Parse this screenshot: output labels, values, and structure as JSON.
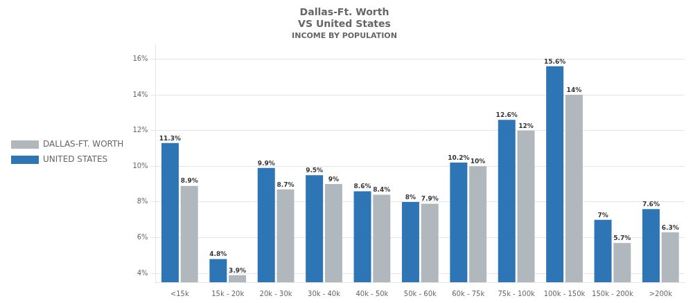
{
  "chart_data": {
    "type": "bar",
    "title": [
      "Dallas-Ft. Worth",
      "VS United States"
    ],
    "subtitle": "INCOME BY POPULATION",
    "categories": [
      "<15k",
      "15k - 20k",
      "20k - 30k",
      "30k - 40k",
      "40k - 50k",
      "50k - 60k",
      "60k - 75k",
      "75k - 100k",
      "100k - 150k",
      "150k - 200k",
      ">200k"
    ],
    "series": [
      {
        "name": "UNITED STATES",
        "color": "#2e75b6",
        "values": [
          0.113,
          0.048,
          0.099,
          0.095,
          0.086,
          0.08,
          0.102,
          0.126,
          0.156,
          0.07,
          0.076
        ],
        "value_labels": [
          "11.3%",
          "4.8%",
          "9.9%",
          "9.5%",
          "8.6%",
          "8%",
          "10.2%",
          "12.6%",
          "15.6%",
          "7%",
          "7.6%"
        ]
      },
      {
        "name": "DALLAS-FT. WORTH",
        "color": "#b0b8be",
        "values": [
          0.089,
          0.039,
          0.087,
          0.09,
          0.084,
          0.079,
          0.1,
          0.12,
          0.14,
          0.057,
          0.063
        ],
        "value_labels": [
          "8.9%",
          "3.9%",
          "8.7%",
          "9%",
          "8.4%",
          "7.9%",
          "10%",
          "12%",
          "14%",
          "5.7%",
          "6.3%"
        ]
      }
    ],
    "ylim": [
      0.035,
      0.168
    ],
    "yticks": [
      {
        "value": 0.04,
        "label": "4%"
      },
      {
        "value": 0.06,
        "label": "6%"
      },
      {
        "value": 0.08,
        "label": "8%"
      },
      {
        "value": 0.1,
        "label": "10%"
      },
      {
        "value": 0.12,
        "label": "12%"
      },
      {
        "value": 0.14,
        "label": "14%"
      },
      {
        "value": 0.16,
        "label": "16%"
      }
    ],
    "grid": true,
    "legend": "left",
    "data_labels": true
  }
}
